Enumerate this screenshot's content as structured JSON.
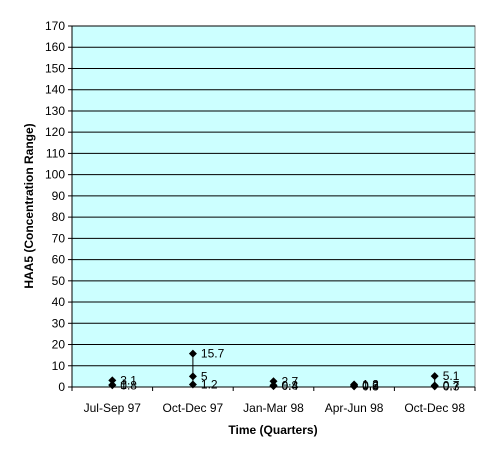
{
  "chart_data": {
    "type": "scatter",
    "title": "",
    "xlabel": "Time (Quarters)",
    "ylabel": "HAA5 (Concentration Range)",
    "ylim": [
      0,
      170
    ],
    "ytick_step": 10,
    "grid": true,
    "legend": "none",
    "categories": [
      "Jul-Sep 97",
      "Oct-Dec 97",
      "Jan-Mar 98",
      "Apr-Jun 98",
      "Oct-Dec 98"
    ],
    "points": [
      {
        "category": "Jul-Sep 97",
        "high": 3.1,
        "mid": 1.0,
        "low": 0.8,
        "labels": [
          "3.1",
          "1",
          "0.8"
        ]
      },
      {
        "category": "Oct-Dec 97",
        "high": 15.7,
        "mid": 5,
        "low": 1.2,
        "labels": [
          "15.7",
          "5",
          "1.2"
        ]
      },
      {
        "category": "Jan-Mar 98",
        "high": 2.7,
        "mid": 0.8,
        "low": 0.4,
        "labels": [
          "2.7",
          "0.8",
          "0.4"
        ]
      },
      {
        "category": "Apr-Jun 98",
        "high": 1.2,
        "mid": 0.6,
        "low": 0.3,
        "labels": [
          "1.2",
          "0.6",
          "0.3"
        ]
      },
      {
        "category": "Oct-Dec 98",
        "high": 5.1,
        "mid": 0.7,
        "low": 0.3,
        "labels": [
          "5.1",
          "0.7",
          "0.3"
        ]
      }
    ],
    "colors": {
      "plot_background": "#CCFFFF",
      "marker": "#000000",
      "gridline": "#000000"
    }
  }
}
